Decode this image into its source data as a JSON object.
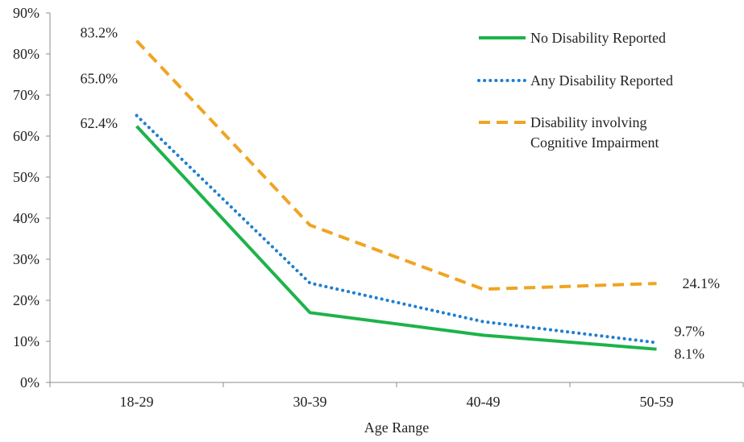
{
  "chart_data": {
    "type": "line",
    "title": "",
    "xlabel": "Age Range",
    "ylabel": "",
    "categories": [
      "18-29",
      "30-39",
      "40-49",
      "50-59"
    ],
    "ylim": [
      0,
      90
    ],
    "yticks": [
      "0%",
      "10%",
      "20%",
      "30%",
      "40%",
      "50%",
      "60%",
      "70%",
      "80%",
      "90%"
    ],
    "grid": false,
    "legend_position": "top-right",
    "series": [
      {
        "name": "No Disability Reported",
        "values": [
          62.4,
          17.0,
          11.5,
          8.1
        ],
        "color": "#1db34a",
        "style": "solid"
      },
      {
        "name": "Any Disability Reported",
        "values": [
          65.0,
          24.2,
          14.8,
          9.7
        ],
        "color": "#1f7fd0",
        "style": "dotted"
      },
      {
        "name": "Disability involving Cognitive Impairment",
        "name_lines": [
          "Disability involving",
          "Cognitive Impairment"
        ],
        "values": [
          83.2,
          38.3,
          22.7,
          24.1
        ],
        "color": "#f0a422",
        "style": "dashed"
      }
    ],
    "data_labels": [
      {
        "series": 2,
        "point": 0,
        "text": "83.2%"
      },
      {
        "series": 1,
        "point": 0,
        "text": "65.0%"
      },
      {
        "series": 0,
        "point": 0,
        "text": "62.4%"
      },
      {
        "series": 2,
        "point": 3,
        "text": "24.1%"
      },
      {
        "series": 1,
        "point": 3,
        "text": "9.7%"
      },
      {
        "series": 0,
        "point": 3,
        "text": "8.1%"
      }
    ]
  }
}
